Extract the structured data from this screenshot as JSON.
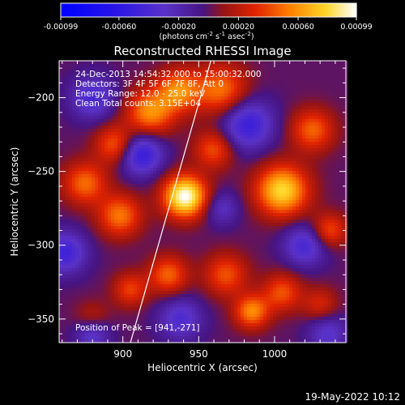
{
  "chart_data": {
    "type": "heatmap",
    "title": "Reconstructed RHESSI Image",
    "xlabel": "Heliocentric X (arcsec)",
    "ylabel": "Heliocentric Y (arcsec)",
    "xlim": [
      858,
      1047
    ],
    "ylim": [
      -366,
      -175
    ],
    "x_ticks": [
      900,
      950,
      1000
    ],
    "y_ticks": [
      -200,
      -250,
      -300,
      -350
    ],
    "colorbar": {
      "range": [
        -0.00099,
        0.00099
      ],
      "ticks": [
        "-0.00099",
        "-0.00060",
        "-0.00020",
        "0.00020",
        "0.00060",
        "0.00099"
      ],
      "unit_label_prefix": "(photons cm",
      "unit_label_exp1": "-2",
      "unit_label_mid": " s",
      "unit_label_exp2": "-1",
      "unit_label_mid2": " asec",
      "unit_label_exp3": "-2",
      "unit_label_suffix": ")"
    },
    "info_lines": [
      "24-Dec-2013 14:54:32.000 to 15:00:32.000",
      "Detectors: 3F 4F 5F 6F 7F 8F, Att 0",
      "Energy Range: 12.0 - 25.0 keV",
      "Clean    Total counts: 3.15E+04"
    ],
    "peak_label": "Position of Peak = [941,-271]",
    "peak": {
      "x": 941,
      "y": -271
    },
    "blobs": [
      {
        "x": 941,
        "y": -267,
        "amp": 1.05,
        "s": 10
      },
      {
        "x": 1005,
        "y": -263,
        "amp": 0.85,
        "s": 12
      },
      {
        "x": 918,
        "y": -210,
        "amp": 0.62,
        "s": 11
      },
      {
        "x": 937,
        "y": -195,
        "amp": 0.58,
        "s": 10
      },
      {
        "x": 965,
        "y": -195,
        "amp": 0.55,
        "s": 12
      },
      {
        "x": 895,
        "y": -232,
        "amp": 0.5,
        "s": 9
      },
      {
        "x": 875,
        "y": -258,
        "amp": 0.52,
        "s": 10
      },
      {
        "x": 898,
        "y": -280,
        "amp": 0.55,
        "s": 10
      },
      {
        "x": 960,
        "y": -235,
        "amp": 0.45,
        "s": 9
      },
      {
        "x": 1025,
        "y": -222,
        "amp": 0.5,
        "s": 10
      },
      {
        "x": 1036,
        "y": -290,
        "amp": 0.45,
        "s": 8
      },
      {
        "x": 968,
        "y": -320,
        "amp": 0.45,
        "s": 10
      },
      {
        "x": 985,
        "y": -345,
        "amp": 0.6,
        "s": 8
      },
      {
        "x": 1005,
        "y": -332,
        "amp": 0.45,
        "s": 9
      },
      {
        "x": 930,
        "y": -320,
        "amp": 0.5,
        "s": 9
      },
      {
        "x": 905,
        "y": -330,
        "amp": 0.4,
        "s": 8
      },
      {
        "x": 1030,
        "y": -340,
        "amp": 0.3,
        "s": 8
      },
      {
        "x": 880,
        "y": -350,
        "amp": 0.25,
        "s": 8
      },
      {
        "x": 912,
        "y": -238,
        "amp": -0.6,
        "s": 10
      },
      {
        "x": 982,
        "y": -218,
        "amp": -0.55,
        "s": 12
      },
      {
        "x": 880,
        "y": -200,
        "amp": -0.45,
        "s": 10
      },
      {
        "x": 862,
        "y": -305,
        "amp": -0.5,
        "s": 10
      },
      {
        "x": 1020,
        "y": -300,
        "amp": -0.45,
        "s": 10
      },
      {
        "x": 938,
        "y": -350,
        "amp": -0.4,
        "s": 10
      },
      {
        "x": 880,
        "y": -360,
        "amp": -0.4,
        "s": 8
      },
      {
        "x": 1035,
        "y": -360,
        "amp": -0.35,
        "s": 9
      },
      {
        "x": 965,
        "y": -275,
        "amp": -0.3,
        "s": 8
      }
    ],
    "limb_line": [
      [
        905,
        -366
      ],
      [
        958,
        -175
      ]
    ]
  },
  "footer": {
    "date_stamp": "19-May-2022 10:12"
  }
}
